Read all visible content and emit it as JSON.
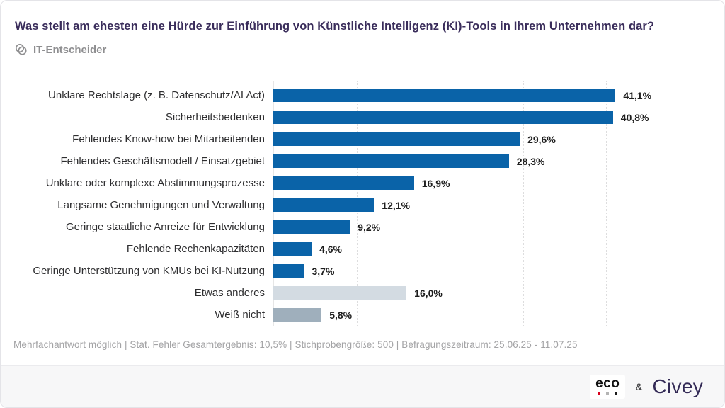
{
  "title": "Was stellt am ehesten eine Hürde zur Einführung von Künstliche Intelligenz (KI)-Tools in Ihrem Unternehmen dar?",
  "audience": "IT-Entscheider",
  "chart_data": {
    "type": "bar",
    "orientation": "horizontal",
    "categories": [
      "Unklare Rechtslage (z. B. Datenschutz/AI Act)",
      "Sicherheitsbedenken",
      "Fehlendes Know-how bei Mitarbeitenden",
      "Fehlendes Geschäftsmodell / Einsatzgebiet",
      "Unklare oder komplexe Abstimmungsprozesse",
      "Langsame Genehmigungen und Verwaltung",
      "Geringe staatliche Anreize für Entwicklung",
      "Fehlende Rechenkapazitäten",
      "Geringe Unterstützung von KMUs bei KI-Nutzung",
      "Etwas anderes",
      "Weiß nicht"
    ],
    "values": [
      41.1,
      40.8,
      29.6,
      28.3,
      16.9,
      12.1,
      9.2,
      4.6,
      3.7,
      16.0,
      5.8
    ],
    "value_labels": [
      "41,1%",
      "40,8%",
      "29,6%",
      "28,3%",
      "16,9%",
      "12,1%",
      "9,2%",
      "4,6%",
      "3,7%",
      "16,0%",
      "5,8%"
    ],
    "bar_colors": [
      "#0a63a8",
      "#0a63a8",
      "#0a63a8",
      "#0a63a8",
      "#0a63a8",
      "#0a63a8",
      "#0a63a8",
      "#0a63a8",
      "#0a63a8",
      "#d3dbe2",
      "#9fafbc"
    ],
    "xlim": [
      0,
      50
    ],
    "gridline_step_percent": 10,
    "grid": "dotted-vertical",
    "legend": "none",
    "title": "Was stellt am ehesten eine Hürde zur Einführung von Künstliche Intelligenz (KI)-Tools in Ihrem Unternehmen dar?",
    "xlabel": "",
    "ylabel": ""
  },
  "footnote": "Mehrfachantwort möglich | Stat. Fehler Gesamtergebnis: 10,5% | Stichprobengröße: 500 | Befragungszeitraum: 25.06.25 - 11.07.25",
  "branding": {
    "eco_label": "eco",
    "ampersand": "&",
    "civey_label": "Civey"
  },
  "colors": {
    "primary_bar": "#0a63a8",
    "other_bar": "#d3dbe2",
    "dont_know_bar": "#9fafbc",
    "title_text": "#3a2d5b",
    "footnote_text": "#a3a3a5",
    "brandbar_bg": "#f7f7f8"
  }
}
